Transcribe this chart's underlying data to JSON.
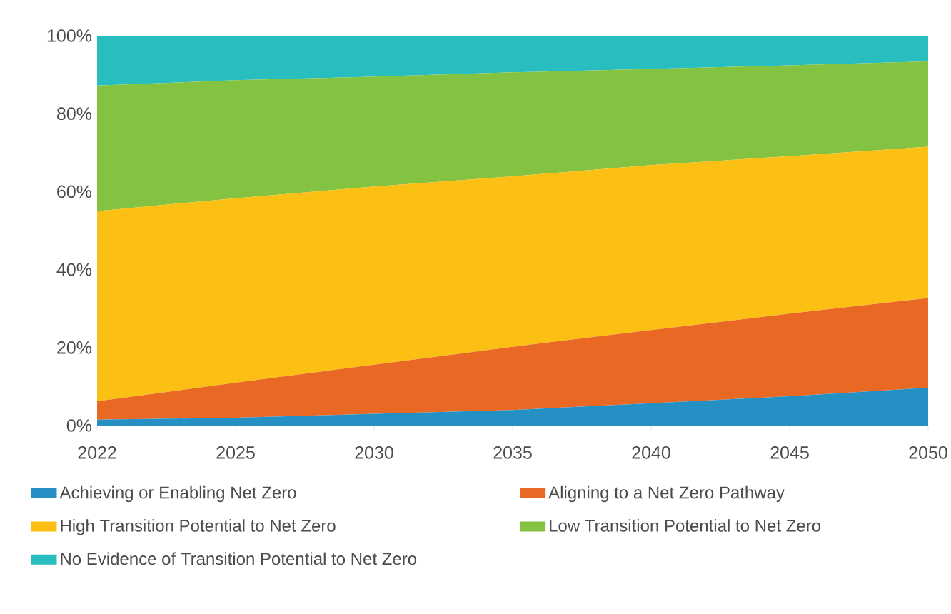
{
  "chart_data": {
    "type": "area",
    "stacked": true,
    "categories": [
      "2022",
      "2025",
      "2030",
      "2035",
      "2040",
      "2045",
      "2050"
    ],
    "series": [
      {
        "name": "Achieving or Enabling Net Zero",
        "color": "#2490c4",
        "values": [
          1.5,
          2,
          3,
          4,
          5.7,
          7.5,
          9.7
        ]
      },
      {
        "name": "Aligning to a Net Zero Pathway",
        "color": "#e96924",
        "values": [
          4.7,
          9,
          12.6,
          16.2,
          18.8,
          21.2,
          23
        ]
      },
      {
        "name": "High Transition Potential to Net Zero",
        "color": "#fbc013",
        "values": [
          48.8,
          47.3,
          45.7,
          43.7,
          42.3,
          40.4,
          38.8
        ]
      },
      {
        "name": "Low Transition Potential to Net Zero",
        "color": "#84c341",
        "values": [
          32.2,
          30.3,
          28.2,
          26.7,
          24.7,
          23.3,
          21.9
        ]
      },
      {
        "name": "No Evidence of Transition Potential to Net Zero",
        "color": "#28bdbf",
        "values": [
          12.8,
          11.4,
          10.5,
          9.4,
          8.5,
          7.6,
          6.6
        ]
      }
    ],
    "ylim": [
      0,
      100
    ],
    "yticks": [
      {
        "value": 0,
        "label": "0%"
      },
      {
        "value": 20,
        "label": "20%"
      },
      {
        "value": 40,
        "label": "40%"
      },
      {
        "value": 60,
        "label": "60%"
      },
      {
        "value": 80,
        "label": "80%"
      },
      {
        "value": 100,
        "label": "100%"
      }
    ],
    "grid": false,
    "legend": "bottom"
  }
}
